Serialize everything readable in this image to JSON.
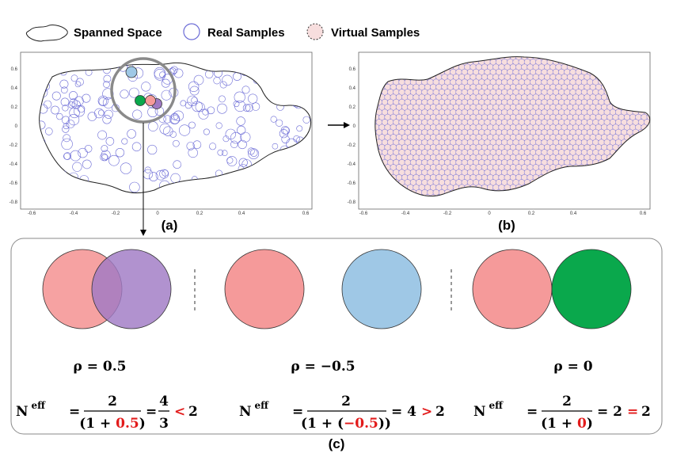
{
  "legend": {
    "spanned_label": "Spanned Space",
    "real_label": "Real Samples",
    "virtual_label": "Virtual Samples"
  },
  "plot": {
    "x_ticks": [
      "-0.6",
      "-0.4",
      "-0.2",
      "0",
      "0.2",
      "0.4",
      "0.6"
    ],
    "y_ticks": [
      "0.6",
      "0.4",
      "0.2",
      "0",
      "-0.2",
      "-0.4",
      "-0.6",
      "-0.8"
    ]
  },
  "labels": {
    "a": "(a)",
    "b": "(b)",
    "c": "(c)"
  },
  "cases": [
    {
      "rho": "ρ = 0.5",
      "n": "N",
      "sup": "eff",
      "eq1": "=",
      "num": "2",
      "den_pre": "(1 + ",
      "den_red": "0.5",
      "den_post": ")",
      "eq2": "=",
      "frac2_num": "4",
      "frac2_den": "3",
      "cmp": "<",
      "rhs": "2",
      "colors": {
        "left": "#f59a9a",
        "right": "#a07ac4"
      }
    },
    {
      "rho": "ρ = −0.5",
      "n": "N",
      "sup": "eff",
      "eq1": "=",
      "num": "2",
      "den_pre": "(1 + (",
      "den_red": "−0.5",
      "den_post": "))",
      "eq2": "= 4",
      "cmp": ">",
      "rhs": "2",
      "colors": {
        "left": "#f59a9a",
        "right": "#9fc8e6"
      }
    },
    {
      "rho": "ρ = 0",
      "n": "N",
      "sup": "eff",
      "eq1": "=",
      "num": "2",
      "den_pre": "(1 + ",
      "den_red": "0",
      "den_post": ")",
      "eq2": "= 2",
      "cmp": "=",
      "rhs": "2",
      "colors": {
        "left": "#f59a9a",
        "right": "#0aa84c"
      }
    }
  ],
  "colors": {
    "real_sample": "#6b6bd6",
    "virtual_fill": "#f7dede",
    "blob_stroke": "#222222",
    "compare_red": "#e21b1b",
    "zoom_circle": "#888888"
  }
}
